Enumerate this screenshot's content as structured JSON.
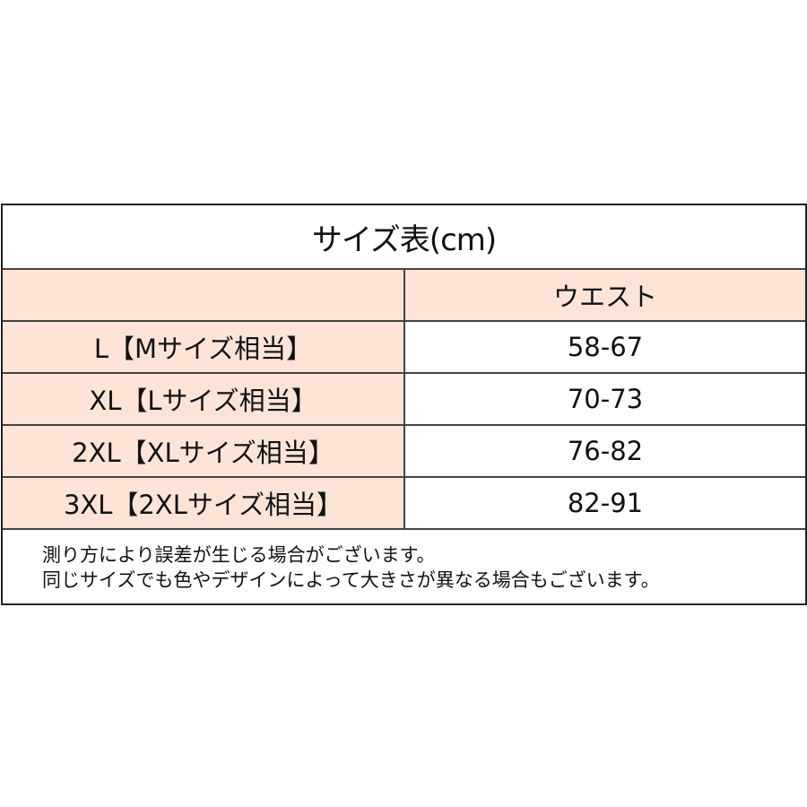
{
  "title": "サイズ表(cm)",
  "header": {
    "label_col": "",
    "waist": "ウエスト"
  },
  "rows": [
    {
      "size": "L【Mサイズ相当】",
      "waist": "58-67"
    },
    {
      "size": "XL【Lサイズ相当】",
      "waist": "70-73"
    },
    {
      "size": "2XL【XLサイズ相当】",
      "waist": "76-82"
    },
    {
      "size": "3XL【2XLサイズ相当】",
      "waist": "82-91"
    }
  ],
  "notes": [
    "測り方により誤差が生じる場合がございます。",
    "同じサイズでも色やデザインによって大きさが異なる場合もございます。"
  ],
  "colors": {
    "header_bg": "#fde4d6",
    "border": "#222222"
  }
}
